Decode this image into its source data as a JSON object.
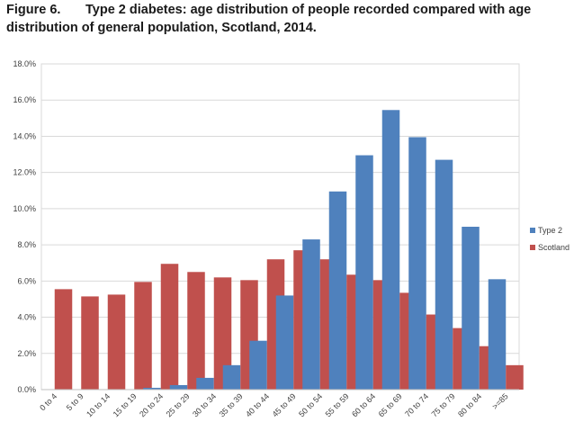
{
  "figure": {
    "number": "Figure 6.",
    "title_line1": "Type 2 diabetes:  age distribution of people recorded  compared with age",
    "title_line2": "distribution of general population, Scotland, 2014."
  },
  "chart_data": {
    "type": "bar",
    "title": "Type 2 diabetes:  age distribution of people recorded  compared with age distribution of general population, Scotland, 2014.",
    "categories": [
      "0 to 4",
      "5 to 9",
      "10 to 14",
      "15 to 19",
      "20 to 24",
      "25 to 29",
      "30 to 34",
      "35 to 39",
      "40 to 44",
      "45 to 49",
      "50 to 54",
      "55 to 59",
      "60 to 64",
      "65 to 69",
      "70 to 74",
      "75 to 79",
      "80 to 84",
      ">=85"
    ],
    "series": [
      {
        "name": "Type 2",
        "color": "#4f81bd",
        "values": [
          0.0,
          0.0,
          0.0,
          0.0,
          0.1,
          0.25,
          0.65,
          1.35,
          2.7,
          5.2,
          8.3,
          10.95,
          12.95,
          15.45,
          13.95,
          12.7,
          9.0,
          6.1
        ]
      },
      {
        "name": "Scotland",
        "color": "#c0504d",
        "values": [
          5.55,
          5.15,
          5.25,
          5.95,
          6.95,
          6.5,
          6.2,
          6.05,
          7.2,
          7.7,
          7.2,
          6.35,
          6.05,
          5.35,
          4.15,
          3.4,
          2.4,
          1.35
        ]
      }
    ],
    "y_ticks": [
      "0.0%",
      "2.0%",
      "4.0%",
      "6.0%",
      "8.0%",
      "10.0%",
      "12.0%",
      "14.0%",
      "16.0%",
      "18.0%"
    ],
    "ylim": [
      0,
      18
    ],
    "y_step": 2,
    "grid": true,
    "legend_position": "right",
    "xlabel": "",
    "ylabel": ""
  }
}
